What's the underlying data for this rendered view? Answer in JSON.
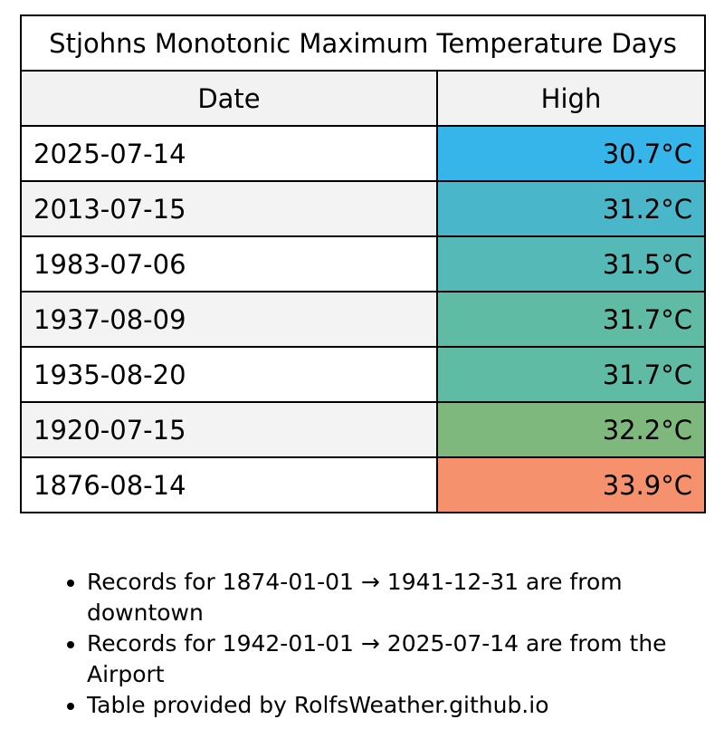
{
  "table": {
    "title": "Stjohns Monotonic Maximum Temperature Days",
    "headers": {
      "date": "Date",
      "high": "High"
    },
    "rows": [
      {
        "date": "2025-07-14",
        "high": "30.7°C",
        "color": "#35b5ea"
      },
      {
        "date": "2013-07-15",
        "high": "31.2°C",
        "color": "#4ab6ca"
      },
      {
        "date": "1983-07-06",
        "high": "31.5°C",
        "color": "#55b9b8"
      },
      {
        "date": "1937-08-09",
        "high": "31.7°C",
        "color": "#5fbba4"
      },
      {
        "date": "1935-08-20",
        "high": "31.7°C",
        "color": "#5fbba4"
      },
      {
        "date": "1920-07-15",
        "high": "32.2°C",
        "color": "#7fb87c"
      },
      {
        "date": "1876-08-14",
        "high": "33.9°C",
        "color": "#f5916c"
      }
    ]
  },
  "notes": [
    "Records for 1874-01-01 → 1941-12-31 are from downtown",
    "Records for 1942-01-01 → 2025-07-14 are from the Airport",
    "Table provided by RolfsWeather.github.io"
  ]
}
